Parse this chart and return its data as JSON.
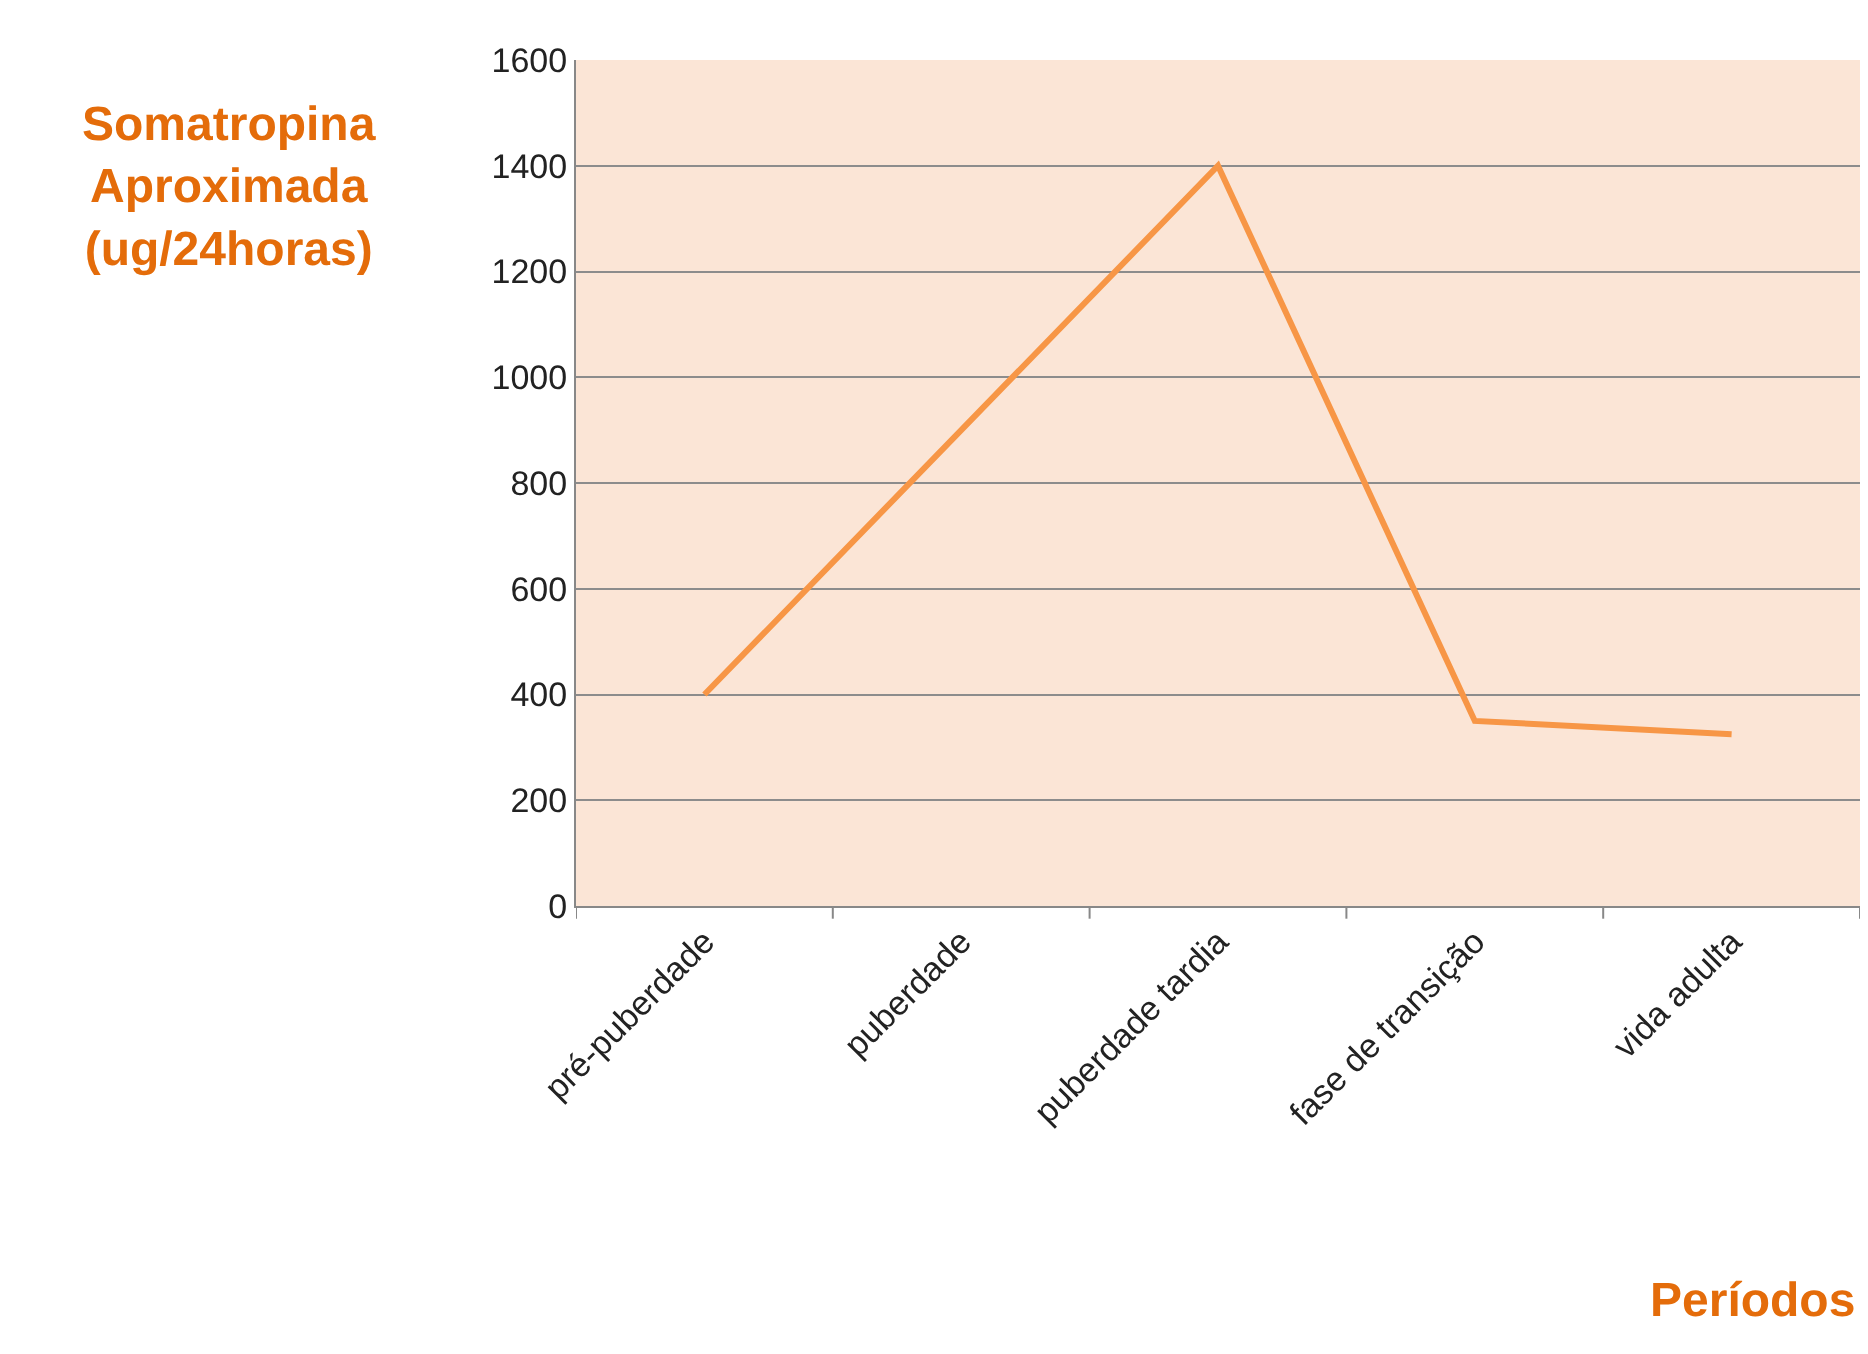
{
  "chart_data": {
    "type": "line",
    "categories": [
      "pré-puberdade",
      "puberdade",
      "puberdade tardia",
      "fase de transição",
      "vida adulta"
    ],
    "series": [
      {
        "color": "#f79646",
        "values": [
          400,
          900,
          1400,
          350,
          325
        ]
      }
    ],
    "ylabel": "Somatropina\nAproximada\n(ug/24horas)",
    "xlabel": "Períodos",
    "ylim": [
      0,
      1600
    ],
    "yticks": [
      0,
      200,
      400,
      600,
      800,
      1000,
      1200,
      1400,
      1600
    ],
    "grid": "y",
    "legend": false,
    "marker": "none",
    "line_style": "solid"
  }
}
